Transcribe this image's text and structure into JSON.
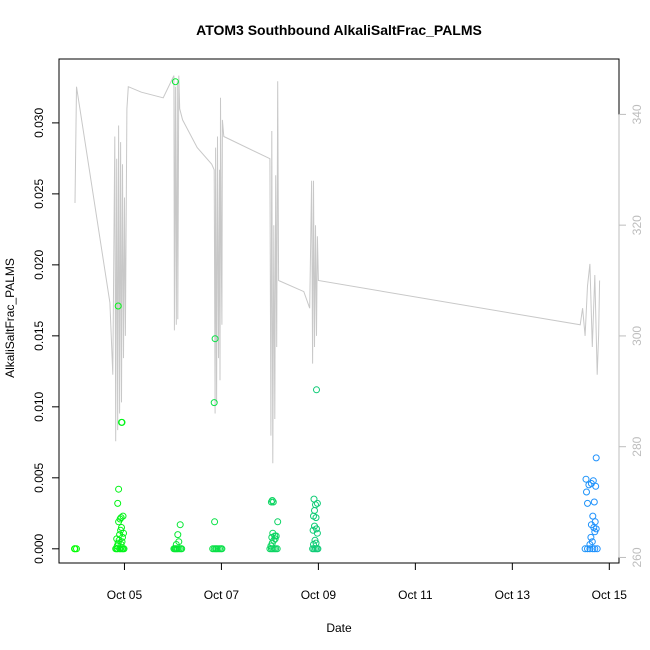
{
  "chart_data": {
    "type": "scatter",
    "title": "ATOM3 Southbound AlkaliSaltFrac_PALMS",
    "xlabel": "Date",
    "ylabel": "AlkaliSaltFrac_PALMS",
    "x_ticks": [
      "Oct 05",
      "Oct 07",
      "Oct 09",
      "Oct 11",
      "Oct 13",
      "Oct 15"
    ],
    "x_tick_days": [
      5,
      7,
      9,
      11,
      13,
      15
    ],
    "xlim": [
      3.65,
      15.2
    ],
    "ylim": [
      -0.001,
      0.0345
    ],
    "y_ticks": [
      "0.000",
      "0.005",
      "0.010",
      "0.015",
      "0.020",
      "0.025",
      "0.030"
    ],
    "y_tick_values": [
      0,
      0.005,
      0.01,
      0.015,
      0.02,
      0.025,
      0.03
    ],
    "y2lim": [
      259,
      350
    ],
    "y2_ticks": [
      "260",
      "280",
      "300",
      "320",
      "340"
    ],
    "y2_tick_values": [
      260,
      280,
      300,
      320,
      340
    ],
    "colors": {
      "line": "#c8c8c8",
      "point_low": "#00ff00",
      "point_high": "#1e90ff",
      "axis": "#000000",
      "axis_right": "#bdbdbd"
    },
    "scatter_points": [
      [
        3.98,
        0
      ],
      [
        4.01,
        0
      ],
      [
        3.97,
        0
      ],
      [
        4.82,
        0
      ],
      [
        4.84,
        0
      ],
      [
        4.86,
        0
      ],
      [
        4.9,
        0
      ],
      [
        4.92,
        0
      ],
      [
        4.95,
        0
      ],
      [
        4.97,
        0
      ],
      [
        4.99,
        0
      ],
      [
        4.85,
        0.0002
      ],
      [
        4.93,
        0.0003
      ],
      [
        4.87,
        0.0004
      ],
      [
        4.95,
        0.0005
      ],
      [
        4.89,
        0.0006
      ],
      [
        4.84,
        0.0007
      ],
      [
        4.9,
        0.001
      ],
      [
        4.96,
        0.0008
      ],
      [
        4.98,
        0.0011
      ],
      [
        4.92,
        0.0013
      ],
      [
        4.94,
        0.0015
      ],
      [
        4.88,
        0.0019
      ],
      [
        4.91,
        0.0021
      ],
      [
        4.97,
        0.0023
      ],
      [
        4.93,
        0.0022
      ],
      [
        4.86,
        0.0032
      ],
      [
        4.88,
        0.0042
      ],
      [
        4.94,
        0.0089
      ],
      [
        4.95,
        0.0089
      ],
      [
        4.87,
        0.0171
      ],
      [
        6.02,
        0
      ],
      [
        6.04,
        0
      ],
      [
        6.06,
        0
      ],
      [
        6.08,
        0
      ],
      [
        6.1,
        0
      ],
      [
        6.13,
        0
      ],
      [
        6.16,
        0
      ],
      [
        6.18,
        0
      ],
      [
        6.07,
        0.0003
      ],
      [
        6.12,
        0.0005
      ],
      [
        6.1,
        0.001
      ],
      [
        6.15,
        0.0017
      ],
      [
        6.05,
        0.0329
      ],
      [
        6.82,
        0
      ],
      [
        6.85,
        0
      ],
      [
        6.88,
        0
      ],
      [
        6.9,
        0
      ],
      [
        6.93,
        0
      ],
      [
        6.96,
        0
      ],
      [
        6.99,
        0
      ],
      [
        7.01,
        0
      ],
      [
        6.86,
        0.0019
      ],
      [
        6.85,
        0.0103
      ],
      [
        6.87,
        0.0148
      ],
      [
        8.0,
        0
      ],
      [
        8.03,
        0
      ],
      [
        8.06,
        0
      ],
      [
        8.09,
        0
      ],
      [
        8.12,
        0
      ],
      [
        8.15,
        0
      ],
      [
        8.02,
        0.0002
      ],
      [
        8.05,
        0.0004
      ],
      [
        8.08,
        0.0006
      ],
      [
        8.04,
        0.0008
      ],
      [
        8.1,
        0.0009
      ],
      [
        8.06,
        0.0011
      ],
      [
        8.13,
        0.0009
      ],
      [
        8.11,
        0.0007
      ],
      [
        8.16,
        0.0019
      ],
      [
        8.03,
        0.0033
      ],
      [
        8.05,
        0.0034
      ],
      [
        8.07,
        0.0033
      ],
      [
        8.88,
        0
      ],
      [
        8.91,
        0
      ],
      [
        8.94,
        0
      ],
      [
        8.97,
        0
      ],
      [
        8.99,
        0
      ],
      [
        8.9,
        0.0003
      ],
      [
        8.95,
        0.0004
      ],
      [
        8.93,
        0.0006
      ],
      [
        8.98,
        0.0011
      ],
      [
        8.89,
        0.0013
      ],
      [
        8.96,
        0.0014
      ],
      [
        8.92,
        0.0016
      ],
      [
        8.95,
        0.0022
      ],
      [
        8.9,
        0.0023
      ],
      [
        8.92,
        0.0027
      ],
      [
        8.94,
        0.0031
      ],
      [
        8.98,
        0.0032
      ],
      [
        8.91,
        0.0035
      ],
      [
        8.96,
        0.0112
      ],
      [
        14.5,
        0
      ],
      [
        14.55,
        0
      ],
      [
        14.6,
        0
      ],
      [
        14.66,
        0
      ],
      [
        14.7,
        0
      ],
      [
        14.75,
        0
      ],
      [
        14.6,
        0.0003
      ],
      [
        14.65,
        0.0005
      ],
      [
        14.62,
        0.0008
      ],
      [
        14.7,
        0.0012
      ],
      [
        14.68,
        0.0015
      ],
      [
        14.73,
        0.0014
      ],
      [
        14.63,
        0.0017
      ],
      [
        14.71,
        0.0019
      ],
      [
        14.66,
        0.0023
      ],
      [
        14.55,
        0.0032
      ],
      [
        14.69,
        0.0033
      ],
      [
        14.53,
        0.004
      ],
      [
        14.58,
        0.0045
      ],
      [
        14.72,
        0.0044
      ],
      [
        14.63,
        0.0046
      ],
      [
        14.52,
        0.0049
      ],
      [
        14.67,
        0.0048
      ],
      [
        14.73,
        0.0064
      ]
    ],
    "altitude_line": [
      [
        3.98,
        324
      ],
      [
        4.01,
        345
      ],
      [
        4.7,
        306
      ],
      [
        4.76,
        293
      ],
      [
        4.8,
        336
      ],
      [
        4.82,
        281
      ],
      [
        4.84,
        332
      ],
      [
        4.86,
        283
      ],
      [
        4.88,
        338
      ],
      [
        4.9,
        286
      ],
      [
        4.92,
        335
      ],
      [
        4.94,
        288
      ],
      [
        4.96,
        331
      ],
      [
        4.98,
        296
      ],
      [
        5.0,
        325
      ],
      [
        5.02,
        300
      ],
      [
        5.05,
        341
      ],
      [
        5.08,
        345
      ],
      [
        5.35,
        344
      ],
      [
        5.8,
        343
      ],
      [
        6.02,
        347
      ],
      [
        6.03,
        301
      ],
      [
        6.05,
        345
      ],
      [
        6.07,
        302
      ],
      [
        6.09,
        346
      ],
      [
        6.1,
        303
      ],
      [
        6.12,
        347
      ],
      [
        6.14,
        341
      ],
      [
        6.2,
        339
      ],
      [
        6.5,
        334
      ],
      [
        6.8,
        331
      ],
      [
        6.85,
        330
      ],
      [
        6.87,
        286
      ],
      [
        6.88,
        334
      ],
      [
        6.9,
        288
      ],
      [
        6.92,
        336
      ],
      [
        6.94,
        296
      ],
      [
        6.96,
        330
      ],
      [
        6.97,
        292
      ],
      [
        6.98,
        343
      ],
      [
        7.0,
        312
      ],
      [
        7.01,
        302
      ],
      [
        7.02,
        339
      ],
      [
        7.05,
        336
      ],
      [
        8.0,
        332
      ],
      [
        8.02,
        282
      ],
      [
        8.04,
        337
      ],
      [
        8.06,
        277
      ],
      [
        8.08,
        320
      ],
      [
        8.1,
        285
      ],
      [
        8.12,
        329
      ],
      [
        8.14,
        298
      ],
      [
        8.16,
        346
      ],
      [
        8.18,
        310
      ],
      [
        8.7,
        308
      ],
      [
        8.82,
        305
      ],
      [
        8.86,
        328
      ],
      [
        8.88,
        295
      ],
      [
        8.9,
        328
      ],
      [
        8.92,
        298
      ],
      [
        8.94,
        320
      ],
      [
        8.96,
        300
      ],
      [
        8.98,
        318
      ],
      [
        9.0,
        310
      ],
      [
        14.4,
        302
      ],
      [
        14.45,
        305
      ],
      [
        14.5,
        300
      ],
      [
        14.55,
        309
      ],
      [
        14.6,
        313
      ],
      [
        14.65,
        298
      ],
      [
        14.7,
        311
      ],
      [
        14.75,
        293
      ],
      [
        14.78,
        300
      ],
      [
        14.8,
        310
      ]
    ]
  }
}
